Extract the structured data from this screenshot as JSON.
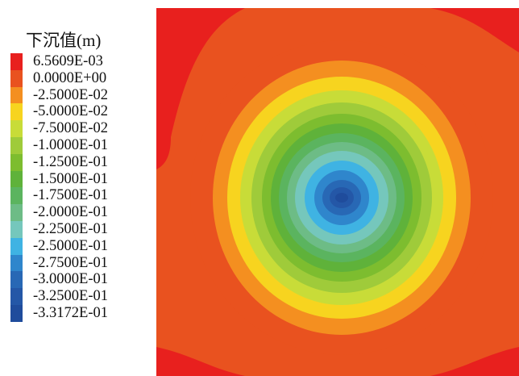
{
  "chart_data": {
    "type": "heatmap",
    "title": "下沉值(m)",
    "legend_position": "left",
    "legend": [
      {
        "label": "6.5609E-03",
        "color": "#e8201e"
      },
      {
        "label": "0.0000E+00",
        "color": "#e9521f"
      },
      {
        "label": "-2.5000E-02",
        "color": "#f48f20"
      },
      {
        "label": "-5.0000E-02",
        "color": "#f7d41f"
      },
      {
        "label": "-7.5000E-02",
        "color": "#c8dc38"
      },
      {
        "label": "-1.0000E-01",
        "color": "#9fcb3a"
      },
      {
        "label": "-1.2500E-01",
        "color": "#7dbd2f"
      },
      {
        "label": "-1.5000E-01",
        "color": "#5fb23a"
      },
      {
        "label": "-1.7500E-01",
        "color": "#5bb45f"
      },
      {
        "label": "-2.0000E-01",
        "color": "#6dbc86"
      },
      {
        "label": "-2.2500E-01",
        "color": "#75c7bc"
      },
      {
        "label": "-2.5000E-01",
        "color": "#3fb3e3"
      },
      {
        "label": "-2.7500E-01",
        "color": "#2f86cc"
      },
      {
        "label": "-3.0000E-01",
        "color": "#2868b5"
      },
      {
        "label": "-3.2500E-01",
        "color": "#2457a7"
      },
      {
        "label": "-3.3172E-01",
        "color": "#1f4c9c"
      }
    ],
    "background_color": "#e8201e"
  }
}
